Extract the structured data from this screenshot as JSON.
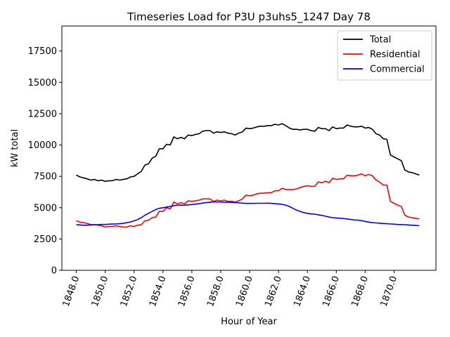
{
  "chart_data": {
    "type": "line",
    "title": "Timeseries Load for P3U p3uhs5_1247  Day 78",
    "xlabel": "Hour of Year",
    "ylabel": "kW total",
    "xlim": [
      1847.0,
      1872.9
    ],
    "ylim": [
      0,
      19500
    ],
    "xticks": [
      1848,
      1850,
      1852,
      1854,
      1856,
      1858,
      1860,
      1862,
      1864,
      1866,
      1868,
      1870
    ],
    "xtick_labels": [
      "1848.0",
      "1850.0",
      "1852.0",
      "1854.0",
      "1856.0",
      "1858.0",
      "1860.0",
      "1862.0",
      "1864.0",
      "1866.0",
      "1868.0",
      "1870.0"
    ],
    "yticks": [
      0,
      2500,
      5000,
      7500,
      10000,
      12500,
      15000,
      17500
    ],
    "ytick_labels": [
      "0",
      "2500",
      "5000",
      "7500",
      "10000",
      "12500",
      "15000",
      "17500"
    ],
    "legend_position": "top-right",
    "x": [
      1848.0,
      1848.25,
      1848.5,
      1848.75,
      1849.0,
      1849.25,
      1849.5,
      1849.75,
      1850.0,
      1850.25,
      1850.5,
      1850.75,
      1851.0,
      1851.25,
      1851.5,
      1851.75,
      1852.0,
      1852.25,
      1852.5,
      1852.75,
      1853.0,
      1853.25,
      1853.5,
      1853.75,
      1854.0,
      1854.25,
      1854.5,
      1854.75,
      1855.0,
      1855.25,
      1855.5,
      1855.75,
      1856.0,
      1856.25,
      1856.5,
      1856.75,
      1857.0,
      1857.25,
      1857.5,
      1857.75,
      1858.0,
      1858.25,
      1858.5,
      1858.75,
      1859.0,
      1859.25,
      1859.5,
      1859.75,
      1860.0,
      1860.25,
      1860.5,
      1860.75,
      1861.0,
      1861.25,
      1861.5,
      1861.75,
      1862.0,
      1862.25,
      1862.5,
      1862.75,
      1863.0,
      1863.25,
      1863.5,
      1863.75,
      1864.0,
      1864.25,
      1864.5,
      1864.75,
      1865.0,
      1865.25,
      1865.5,
      1865.75,
      1866.0,
      1866.25,
      1866.5,
      1866.75,
      1867.0,
      1867.25,
      1867.5,
      1867.75,
      1868.0,
      1868.25,
      1868.5,
      1868.75,
      1869.0,
      1869.25,
      1869.5,
      1869.75,
      1870.0,
      1870.25,
      1870.5,
      1870.75,
      1871.0,
      1871.25,
      1871.5,
      1871.75
    ],
    "series": [
      {
        "name": "Total",
        "color": "#000000",
        "values": [
          7600,
          7450,
          7380,
          7300,
          7200,
          7250,
          7150,
          7200,
          7100,
          7150,
          7150,
          7250,
          7200,
          7250,
          7300,
          7450,
          7500,
          7700,
          7900,
          8400,
          8500,
          8950,
          9100,
          9700,
          9700,
          10050,
          10000,
          10650,
          10500,
          10600,
          10500,
          10800,
          10750,
          10850,
          10900,
          11100,
          11150,
          11150,
          10950,
          11050,
          11000,
          11050,
          10950,
          10900,
          10800,
          10950,
          11050,
          11350,
          11300,
          11350,
          11450,
          11500,
          11500,
          11550,
          11550,
          11650,
          11600,
          11700,
          11550,
          11350,
          11250,
          11250,
          11200,
          11250,
          11250,
          11150,
          11100,
          11400,
          11300,
          11300,
          11150,
          11450,
          11300,
          11350,
          11350,
          11600,
          11500,
          11450,
          11450,
          11500,
          11350,
          11400,
          11250,
          10900,
          10800,
          10500,
          10450,
          9200,
          9050,
          8900,
          8750,
          8000,
          7850,
          7800,
          7700,
          7600
        ]
      },
      {
        "name": "Residential",
        "color": "#ff0000",
        "values": [
          3950,
          3850,
          3800,
          3750,
          3650,
          3650,
          3600,
          3550,
          3450,
          3500,
          3500,
          3550,
          3500,
          3450,
          3450,
          3550,
          3500,
          3600,
          3650,
          3950,
          4000,
          4200,
          4250,
          4700,
          4700,
          5000,
          4900,
          5450,
          5300,
          5400,
          5300,
          5550,
          5500,
          5550,
          5600,
          5700,
          5700,
          5700,
          5500,
          5600,
          5550,
          5600,
          5500,
          5500,
          5450,
          5550,
          5700,
          6000,
          5950,
          6000,
          6100,
          6150,
          6150,
          6200,
          6200,
          6350,
          6350,
          6550,
          6450,
          6450,
          6450,
          6500,
          6600,
          6700,
          6750,
          6700,
          6700,
          7050,
          7000,
          7100,
          7000,
          7350,
          7250,
          7300,
          7300,
          7600,
          7550,
          7550,
          7600,
          7700,
          7550,
          7650,
          7550,
          7200,
          7050,
          6800,
          6800,
          5500,
          5350,
          5200,
          5100,
          4400,
          4250,
          4200,
          4150,
          4100
        ]
      },
      {
        "name": "Commercial",
        "color": "#0000ff",
        "values": [
          3650,
          3620,
          3600,
          3600,
          3620,
          3640,
          3640,
          3660,
          3660,
          3680,
          3690,
          3700,
          3720,
          3750,
          3800,
          3860,
          3950,
          4050,
          4200,
          4400,
          4550,
          4700,
          4850,
          4950,
          5000,
          5050,
          5100,
          5150,
          5200,
          5200,
          5200,
          5220,
          5250,
          5280,
          5320,
          5360,
          5400,
          5430,
          5450,
          5450,
          5450,
          5430,
          5430,
          5420,
          5400,
          5380,
          5360,
          5340,
          5340,
          5340,
          5350,
          5350,
          5350,
          5360,
          5340,
          5320,
          5300,
          5260,
          5200,
          5100,
          4950,
          4800,
          4700,
          4600,
          4550,
          4500,
          4480,
          4430,
          4380,
          4320,
          4250,
          4200,
          4180,
          4160,
          4130,
          4100,
          4060,
          4020,
          4000,
          3960,
          3900,
          3850,
          3800,
          3780,
          3760,
          3740,
          3720,
          3700,
          3680,
          3660,
          3650,
          3640,
          3620,
          3600,
          3580,
          3560
        ]
      }
    ]
  }
}
